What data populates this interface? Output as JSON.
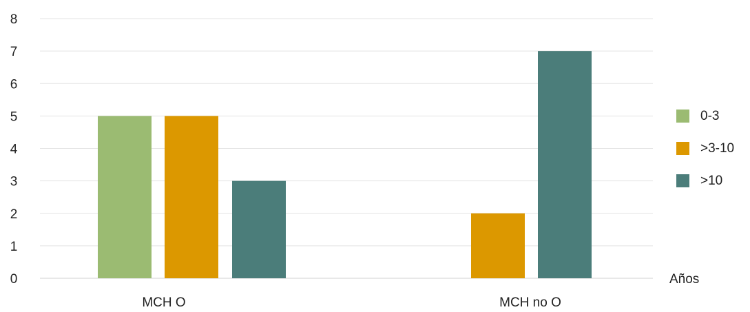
{
  "chart_data": {
    "type": "bar",
    "title": "",
    "xlabel": "",
    "ylabel": "",
    "unit_label": "Años",
    "categories": [
      "MCH O",
      "MCH no O"
    ],
    "series": [
      {
        "name": "0-3",
        "color": "#9bbb72",
        "values": [
          5,
          null
        ]
      },
      {
        "name": ">3-10",
        "color": "#dc9800",
        "values": [
          5,
          2
        ]
      },
      {
        "name": ">10",
        "color": "#4b7d7a",
        "values": [
          3,
          7
        ]
      }
    ],
    "ylim": [
      0,
      8
    ],
    "yticks": [
      "0",
      "1",
      "2",
      "3",
      "4",
      "5",
      "6",
      "7",
      "8"
    ],
    "grid": true,
    "legend_position": "right"
  }
}
